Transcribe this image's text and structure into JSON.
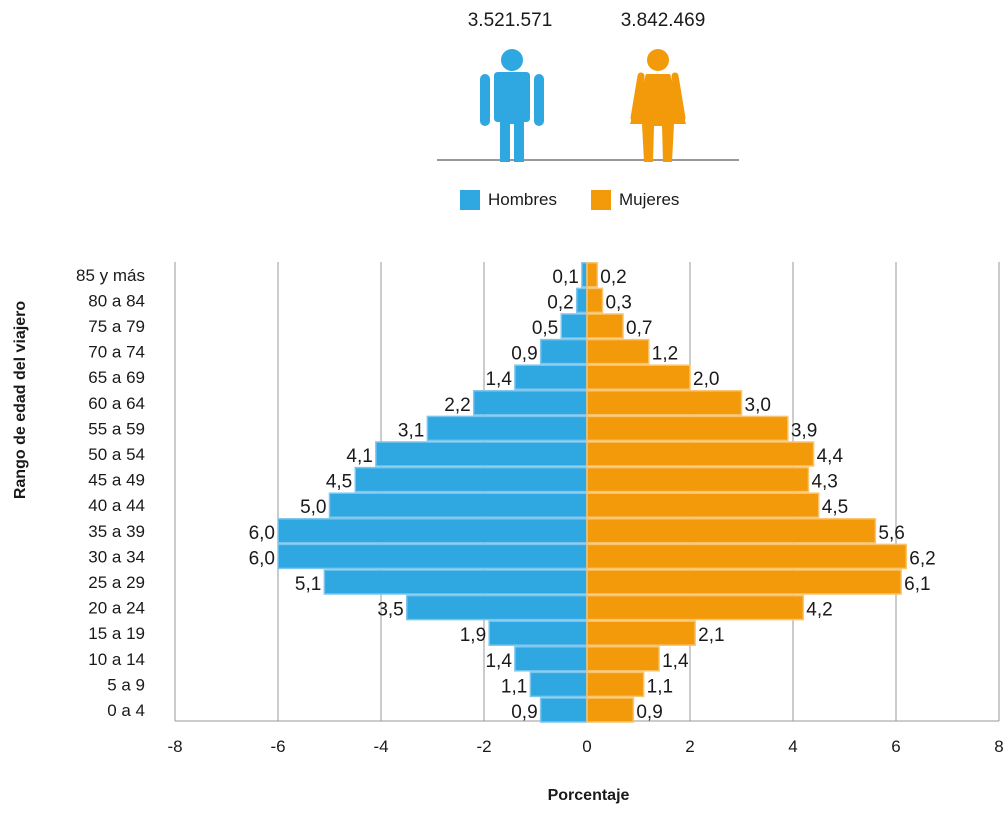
{
  "totals": {
    "men": "3.521.571",
    "women": "3.842.469"
  },
  "legend": {
    "men_label": "Hombres",
    "women_label": "Mujeres"
  },
  "colors": {
    "men": "#2fa7e0",
    "women": "#f39a0b",
    "men_edge": "#7cc6ee",
    "women_edge": "#f9c46e",
    "grid": "#999999"
  },
  "icons": {
    "men": "man-icon",
    "women": "woman-icon"
  },
  "chart_data": {
    "type": "bar",
    "orientation": "horizontal",
    "ylabel": "Rango de edad del viajero",
    "xlabel": "Porcentaje",
    "xlim": [
      -8,
      8
    ],
    "xticks": [
      -8,
      -6,
      -4,
      -2,
      0,
      2,
      4,
      6,
      8
    ],
    "grid": true,
    "categories": [
      "85 y más",
      "80 a 84",
      "75 a 79",
      "70 a 74",
      "65 a 69",
      "60 a 64",
      "55 a 59",
      "50 a 54",
      "45 a 49",
      "40 a 44",
      "35 a 39",
      "30 a 34",
      "25 a 29",
      "20 a 24",
      "15 a 19",
      "10 a 14",
      "5 a 9",
      "0 a 4"
    ],
    "series": [
      {
        "name": "Hombres",
        "values": [
          -0.1,
          -0.2,
          -0.5,
          -0.9,
          -1.4,
          -2.2,
          -3.1,
          -4.1,
          -4.5,
          -5.0,
          -6.0,
          -6.0,
          -5.1,
          -3.5,
          -1.9,
          -1.4,
          -1.1,
          -0.9
        ],
        "labels": [
          "0,1",
          "0,2",
          "0,5",
          "0,9",
          "1,4",
          "2,2",
          "3,1",
          "4,1",
          "4,5",
          "5,0",
          "6,0",
          "6,0",
          "5,1",
          "3,5",
          "1,9",
          "1,4",
          "1,1",
          "0,9"
        ]
      },
      {
        "name": "Mujeres",
        "values": [
          0.2,
          0.3,
          0.7,
          1.2,
          2.0,
          3.0,
          3.9,
          4.4,
          4.3,
          4.5,
          5.6,
          6.2,
          6.1,
          4.2,
          2.1,
          1.4,
          1.1,
          0.9
        ],
        "labels": [
          "0,2",
          "0,3",
          "0,7",
          "1,2",
          "2,0",
          "3,0",
          "3,9",
          "4,4",
          "4,3",
          "4,5",
          "5,6",
          "6,2",
          "6,1",
          "4,2",
          "2,1",
          "1,4",
          "1,1",
          "0,9"
        ]
      }
    ]
  }
}
